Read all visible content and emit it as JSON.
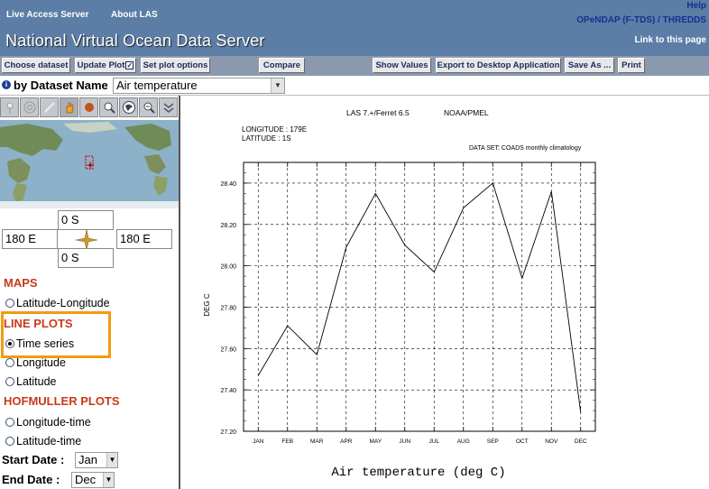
{
  "header": {
    "nav": [
      "Live Access Server",
      "About LAS"
    ],
    "help": "Help",
    "opendap": "OPeNDAP (F-TDS) / THREDDS",
    "title": "National Virtual Ocean Data Server",
    "link_to_page": "Link to this page"
  },
  "toolbar": {
    "choose_dataset": "Choose dataset",
    "update_plot": "Update Plot",
    "set_plot_options": "Set plot options",
    "compare": "Compare",
    "show_values": "Show Values",
    "export": "Export to Desktop Application",
    "save_as": "Save As ...",
    "print": "Print"
  },
  "dataset": {
    "by_label": "by Dataset Name",
    "selected": "Air temperature"
  },
  "region": {
    "north": "0 S",
    "west": "180 E",
    "east": "180 E",
    "south": "0 S"
  },
  "sections": {
    "maps": "MAPS",
    "maps_options": [
      "Latitude-Longitude"
    ],
    "line_plots": "LINE PLOTS",
    "line_options": [
      "Time series",
      "Longitude",
      "Latitude"
    ],
    "selected_line": "Time series",
    "hofmuller": "HOFMULLER PLOTS",
    "hof_options": [
      "Longitude-time",
      "Latitude-time"
    ]
  },
  "dates": {
    "start_label": "Start Date :",
    "start_value": "Jan",
    "end_label": "End Date :",
    "end_value": "Dec"
  },
  "chart_data": {
    "type": "line",
    "header_left": "LAS 7.+/Ferret 6.5",
    "header_right": "NOAA/PMEL",
    "location": [
      "LONGITUDE : 179E",
      "LATITUDE : 1S"
    ],
    "dataset_note": "DATA SET: COADS monthly climatology",
    "categories": [
      "JAN",
      "FEB",
      "MAR",
      "APR",
      "MAY",
      "JUN",
      "JUL",
      "AUG",
      "SEP",
      "OCT",
      "NOV",
      "DEC"
    ],
    "values": [
      27.47,
      27.71,
      27.57,
      28.09,
      28.35,
      28.1,
      27.97,
      28.28,
      28.4,
      27.94,
      28.36,
      27.29
    ],
    "ylabel": "DEG C",
    "yticks": [
      "27.20",
      "27.40",
      "27.60",
      "27.80",
      "28.00",
      "28.20",
      "28.40"
    ],
    "ylim": [
      27.2,
      28.5
    ],
    "grid": true,
    "xlabel": "Air temperature (deg C)",
    "colors": {
      "line": "#000000",
      "grid": "#000000"
    }
  }
}
